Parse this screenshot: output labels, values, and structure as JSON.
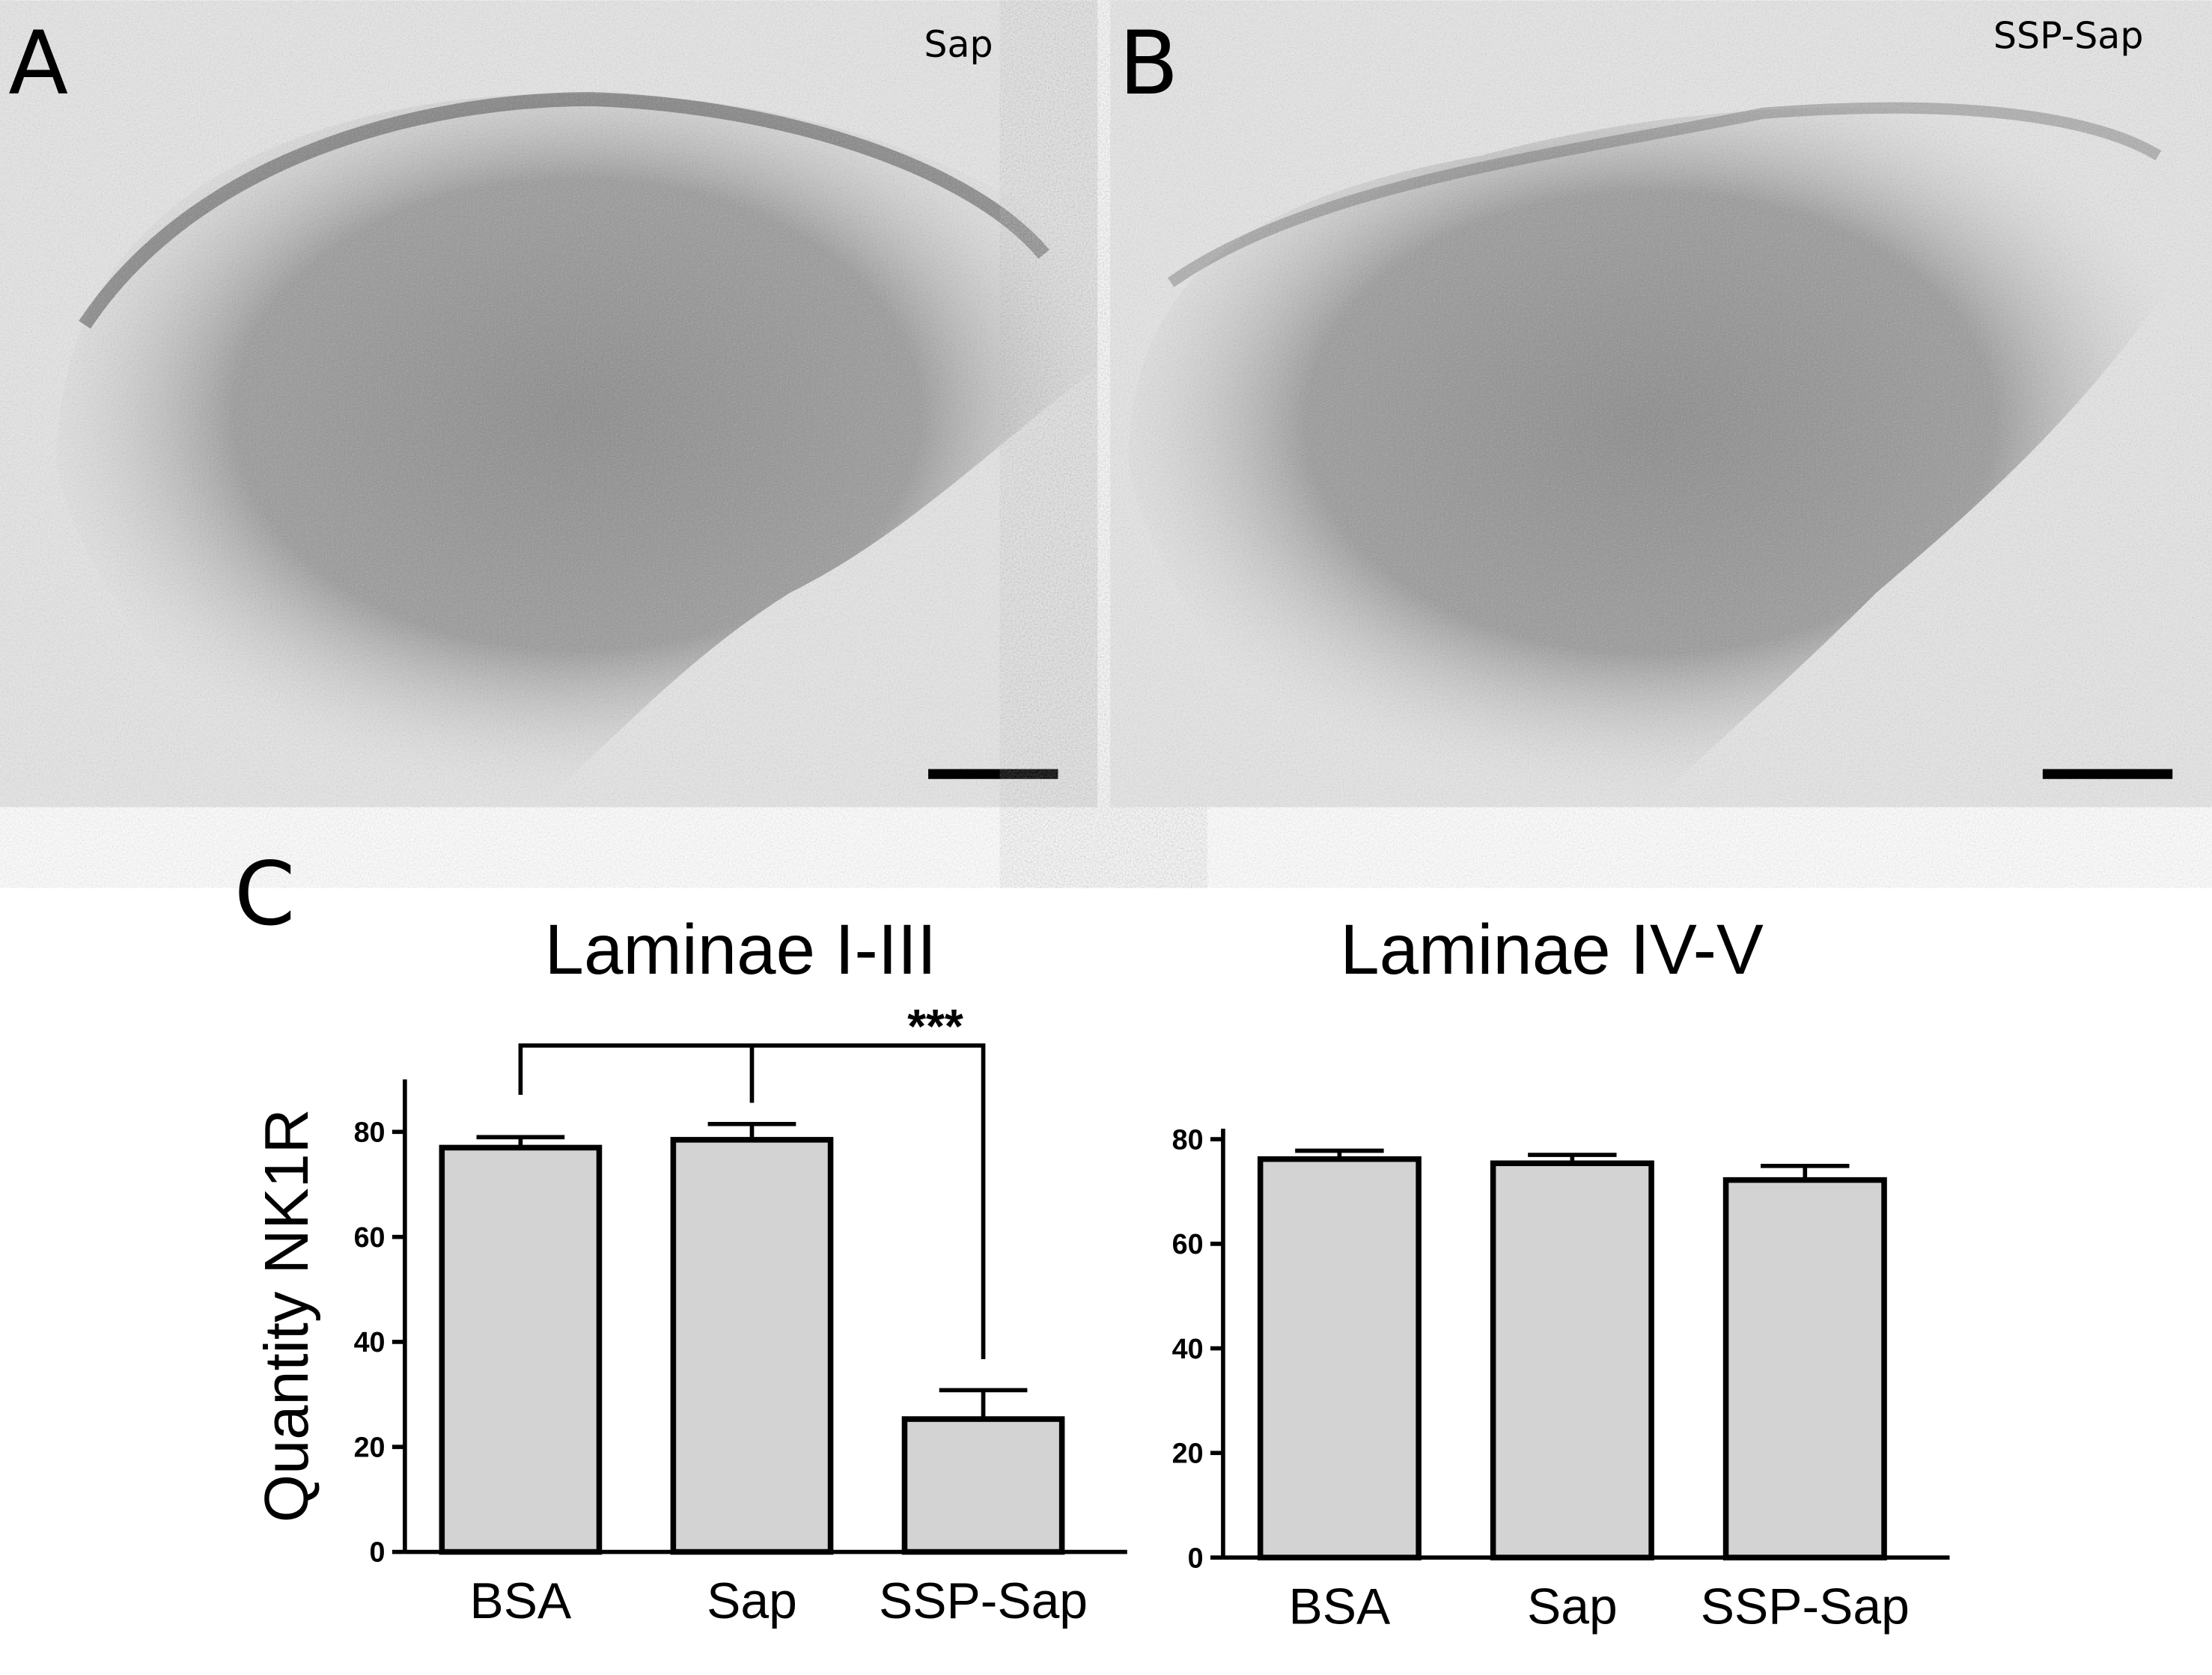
{
  "panel_labels": [
    "A",
    "B",
    "C"
  ],
  "micrographs": [
    {
      "label": "Sap"
    },
    {
      "label": "SSP-Sap"
    }
  ],
  "chart_data": [
    {
      "type": "bar",
      "title": "Laminae I-III",
      "ylabel": "Quantity NK1R",
      "categories": [
        "BSA",
        "Sap",
        "SSP-Sap"
      ],
      "series": [
        {
          "color": "#d3d3d3",
          "values": [
            77,
            78.5,
            25.3
          ],
          "errors": [
            2,
            3,
            5.5
          ]
        }
      ],
      "ylim": [
        0,
        90
      ],
      "yticks": [
        0,
        20,
        40,
        60,
        80
      ],
      "annotation": "***"
    },
    {
      "type": "bar",
      "title": "Laminae IV-V",
      "categories": [
        "BSA",
        "Sap",
        "SSP-Sap"
      ],
      "series": [
        {
          "color": "#d3d3d3",
          "values": [
            76.2,
            75.4,
            72.2
          ],
          "errors": [
            1.6,
            1.6,
            2.7
          ]
        }
      ],
      "ylim": [
        0,
        82
      ],
      "yticks": [
        0,
        20,
        40,
        60,
        80
      ]
    }
  ]
}
